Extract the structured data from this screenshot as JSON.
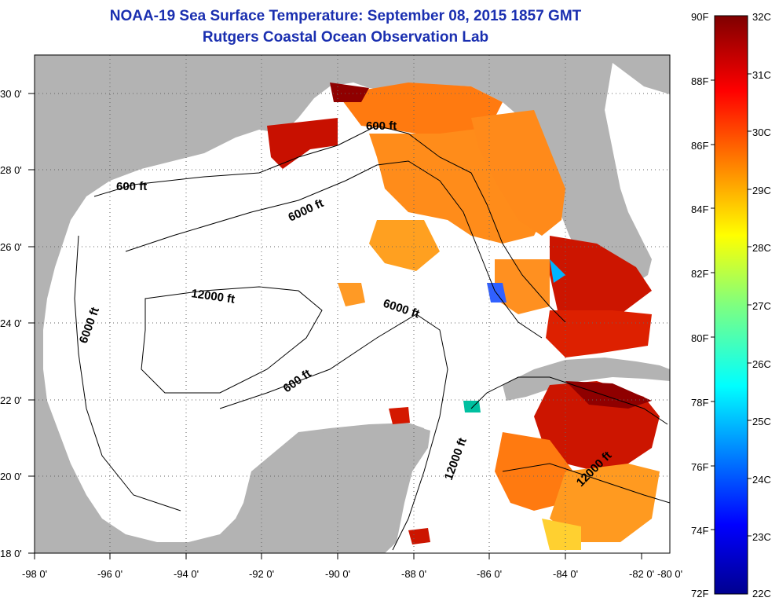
{
  "title": {
    "line1": "NOAA-19 Sea Surface Temperature:  September 08, 2015 1857 GMT",
    "line2": "Rutgers Coastal Ocean Observation Lab"
  },
  "axes": {
    "x_ticks": [
      "-98 0'",
      "-96 0'",
      "-94 0'",
      "-92 0'",
      "-90 0'",
      "-88 0'",
      "-86 0'",
      "-84 0'",
      "-82 0'",
      "-80 0'"
    ],
    "y_ticks": [
      "30 0'",
      "28 0'",
      "26 0'",
      "24 0'",
      "22 0'",
      "20 0'",
      "18 0'"
    ],
    "lon_range": [
      -98,
      -80
    ],
    "lat_range": [
      18,
      31
    ]
  },
  "contour_labels": [
    "600 ft",
    "600 ft",
    "600 ft",
    "6000 ft",
    "6000 ft",
    "6000 ft",
    "12000 ft",
    "12000 ft",
    "12000 ft"
  ],
  "colorbar": {
    "f_labels": [
      "90F",
      "88F",
      "86F",
      "84F",
      "82F",
      "80F",
      "78F",
      "76F",
      "74F",
      "72F"
    ],
    "c_labels": [
      "32C",
      "31C",
      "30C",
      "29C",
      "28C",
      "27C",
      "26C",
      "25C",
      "24C",
      "23C",
      "22C"
    ],
    "range_c": [
      22,
      32
    ],
    "range_f": [
      72,
      90
    ]
  },
  "colors": {
    "title": "#1a2fb0",
    "land": "#b3b3b3",
    "ocean_nodata": "#ffffff",
    "hot": "#7f0000",
    "warm": "#ff6a00",
    "cool": "#00b4ff"
  }
}
